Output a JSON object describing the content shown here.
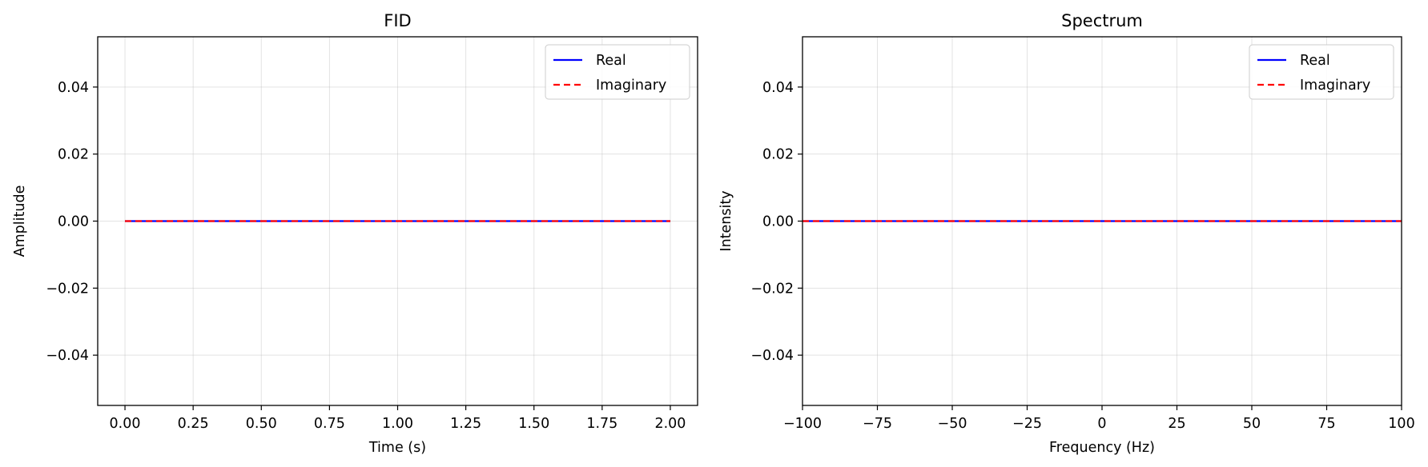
{
  "chart_data": [
    {
      "type": "line",
      "title": "FID",
      "xlabel": "Time (s)",
      "ylabel": "Amplitude",
      "xlim": [
        -0.1,
        2.1
      ],
      "ylim": [
        -0.055,
        0.055
      ],
      "xticks": [
        0.0,
        0.25,
        0.5,
        0.75,
        1.0,
        1.25,
        1.5,
        1.75,
        2.0
      ],
      "xtick_labels": [
        "0.00",
        "0.25",
        "0.50",
        "0.75",
        "1.00",
        "1.25",
        "1.50",
        "1.75",
        "2.00"
      ],
      "yticks": [
        -0.04,
        -0.02,
        0.0,
        0.02,
        0.04
      ],
      "ytick_labels": [
        "−0.04",
        "−0.02",
        "0.00",
        "0.02",
        "0.04"
      ],
      "grid": true,
      "legend_position": "top-right",
      "series": [
        {
          "name": "Real",
          "color": "#0000ff",
          "style": "solid",
          "x": [
            0.0,
            2.0
          ],
          "y": [
            0.0,
            0.0
          ]
        },
        {
          "name": "Imaginary",
          "color": "#ff0000",
          "style": "dashed",
          "x": [
            0.0,
            2.0
          ],
          "y": [
            0.0,
            0.0
          ]
        }
      ]
    },
    {
      "type": "line",
      "title": "Spectrum",
      "xlabel": "Frequency (Hz)",
      "ylabel": "Intensity",
      "xlim": [
        -100,
        100
      ],
      "ylim": [
        -0.055,
        0.055
      ],
      "xticks": [
        -100,
        -75,
        -50,
        -25,
        0,
        25,
        50,
        75,
        100
      ],
      "xtick_labels": [
        "−100",
        "−75",
        "−50",
        "−25",
        "0",
        "25",
        "50",
        "75",
        "100"
      ],
      "yticks": [
        -0.04,
        -0.02,
        0.0,
        0.02,
        0.04
      ],
      "ytick_labels": [
        "−0.04",
        "−0.02",
        "0.00",
        "0.02",
        "0.04"
      ],
      "grid": true,
      "legend_position": "top-right",
      "series": [
        {
          "name": "Real",
          "color": "#0000ff",
          "style": "solid",
          "x": [
            -100,
            100
          ],
          "y": [
            0.0,
            0.0
          ]
        },
        {
          "name": "Imaginary",
          "color": "#ff0000",
          "style": "dashed",
          "x": [
            -100,
            100
          ],
          "y": [
            0.0,
            0.0
          ]
        }
      ]
    }
  ]
}
